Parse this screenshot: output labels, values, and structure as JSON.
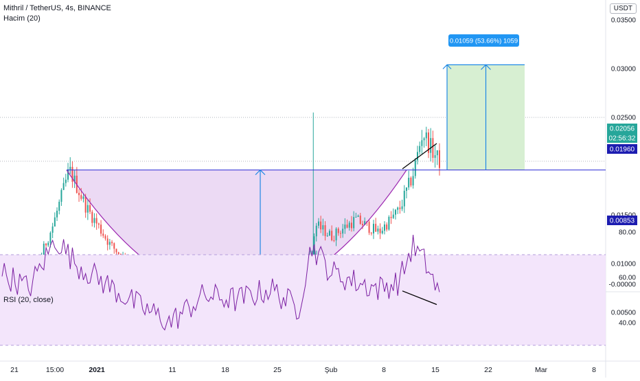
{
  "header": {
    "symbol_title": "Mithril / TetherUS, 4s, BINANCE",
    "volume_legend": "Hacim (20)",
    "rsi_legend": "RSI (20, close)",
    "currency": "USDT"
  },
  "colors": {
    "up": "#26a69a",
    "down": "#ef5350",
    "volume_ma": "#f7a35c",
    "cup_fill": "#e6cdf0",
    "cup_line": "#9c27b0",
    "level_line": "#2a2ad4",
    "measure_arrow": "#1e88e5",
    "target_fill": "#d7efd2",
    "rsi_line": "#7b1fa2",
    "rsi_band": "#f3e5fb",
    "divergence": "#000000"
  },
  "chart_data": [
    {
      "type": "candlestick",
      "x_tick_labels": [
        "21",
        "15:00",
        "2021",
        "11",
        "18",
        "25",
        "Şub",
        "8",
        "15",
        "22",
        "Mar",
        "8"
      ],
      "y_tick_labels": [
        "0.03500",
        "0.03000",
        "0.02500",
        "0.01500",
        "0.01000",
        "0.00500"
      ],
      "ylim": [
        0.0047,
        0.0355
      ],
      "price_labels": {
        "last_price": "0.02056",
        "countdown": "02:56:32",
        "resistance": "0.01960",
        "support": "0.00853"
      },
      "resistance_level": 0.0196,
      "support_level": 0.00853,
      "approx_close_path": [
        {
          "t": 0,
          "p": 0.0065
        },
        {
          "t": 5,
          "p": 0.0088
        },
        {
          "t": 10,
          "p": 0.0095
        },
        {
          "t": 15,
          "p": 0.0138
        },
        {
          "t": 20,
          "p": 0.0196
        },
        {
          "t": 25,
          "p": 0.0158
        },
        {
          "t": 32,
          "p": 0.012
        },
        {
          "t": 40,
          "p": 0.0092
        },
        {
          "t": 50,
          "p": 0.0087
        },
        {
          "t": 60,
          "p": 0.009
        },
        {
          "t": 70,
          "p": 0.0096
        },
        {
          "t": 80,
          "p": 0.0094
        },
        {
          "t": 88,
          "p": 0.0092
        },
        {
          "t": 92,
          "p": 0.0098
        },
        {
          "t": 93,
          "p": 0.014
        },
        {
          "t": 98,
          "p": 0.0128
        },
        {
          "t": 105,
          "p": 0.0145
        },
        {
          "t": 112,
          "p": 0.0132
        },
        {
          "t": 118,
          "p": 0.0155
        },
        {
          "t": 122,
          "p": 0.019
        },
        {
          "t": 125,
          "p": 0.0235
        },
        {
          "t": 128,
          "p": 0.0215
        },
        {
          "t": 130,
          "p": 0.0205
        }
      ],
      "annotations": {
        "measure_label": "0.01059 (53.66%) 1059",
        "measure_value": 0.01059,
        "measure_percent": 53.66,
        "measure_bars": 1059,
        "target_price": 0.0304
      }
    },
    {
      "type": "bar",
      "name": "volume",
      "y_tick_labels": [
        "-0.00000"
      ]
    },
    {
      "type": "line",
      "name": "rsi",
      "y_tick_labels": [
        "80.00",
        "60.00",
        "40.00"
      ],
      "ylim": [
        30,
        85
      ],
      "band": [
        30,
        70
      ],
      "approx_path": [
        {
          "t": 0,
          "p": 62
        },
        {
          "t": 8,
          "p": 55
        },
        {
          "t": 16,
          "p": 77
        },
        {
          "t": 22,
          "p": 66
        },
        {
          "t": 30,
          "p": 58
        },
        {
          "t": 40,
          "p": 48
        },
        {
          "t": 50,
          "p": 40
        },
        {
          "t": 60,
          "p": 52
        },
        {
          "t": 70,
          "p": 50
        },
        {
          "t": 80,
          "p": 55
        },
        {
          "t": 88,
          "p": 46
        },
        {
          "t": 92,
          "p": 74
        },
        {
          "t": 98,
          "p": 62
        },
        {
          "t": 105,
          "p": 58
        },
        {
          "t": 112,
          "p": 55
        },
        {
          "t": 118,
          "p": 58
        },
        {
          "t": 122,
          "p": 74
        },
        {
          "t": 126,
          "p": 66
        },
        {
          "t": 130,
          "p": 52
        }
      ]
    }
  ]
}
